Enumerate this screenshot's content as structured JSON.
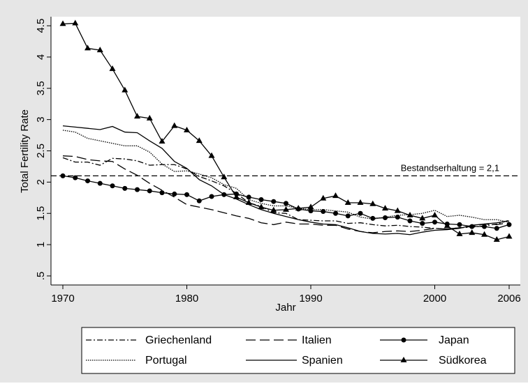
{
  "chart_data": {
    "type": "line",
    "ylabel": "Total Fertility Rate",
    "xlabel": "Jahr",
    "x": [
      1970,
      1971,
      1972,
      1973,
      1974,
      1975,
      1976,
      1977,
      1978,
      1979,
      1980,
      1981,
      1982,
      1983,
      1984,
      1985,
      1986,
      1987,
      1988,
      1989,
      1990,
      1991,
      1992,
      1993,
      1994,
      1995,
      1996,
      1997,
      1998,
      1999,
      2000,
      2001,
      2002,
      2003,
      2004,
      2005,
      2006
    ],
    "xlim": [
      1970,
      2006
    ],
    "xticks": [
      1970,
      1980,
      1990,
      2000,
      2006
    ],
    "ylim": [
      0.5,
      4.5
    ],
    "yticks": [
      {
        "value": 0.5,
        "label": ".5"
      },
      1,
      1.5,
      2,
      2.5,
      3,
      3.5,
      4,
      4.5
    ],
    "hline": {
      "value": 2.1,
      "label": "Bestandserhaltung = 2,1",
      "dash": "8,4"
    },
    "series": [
      {
        "name": "Griechenland",
        "color": "#000000",
        "dash": "8,3,2,3",
        "marker": "none",
        "values": [
          2.39,
          2.32,
          2.32,
          2.27,
          2.38,
          2.37,
          2.34,
          2.27,
          2.28,
          2.28,
          2.21,
          2.09,
          2.02,
          1.94,
          1.82,
          1.67,
          1.61,
          1.51,
          1.5,
          1.4,
          1.39,
          1.38,
          1.38,
          1.34,
          1.35,
          1.32,
          1.3,
          1.31,
          1.29,
          1.28,
          1.26,
          1.25,
          1.27,
          1.28,
          1.3,
          1.33,
          1.39
        ]
      },
      {
        "name": "Italien",
        "color": "#000000",
        "dash": "14,6",
        "marker": "none",
        "values": [
          2.42,
          2.41,
          2.36,
          2.34,
          2.33,
          2.21,
          2.11,
          1.98,
          1.87,
          1.76,
          1.64,
          1.6,
          1.56,
          1.51,
          1.46,
          1.42,
          1.35,
          1.32,
          1.36,
          1.33,
          1.33,
          1.31,
          1.31,
          1.25,
          1.21,
          1.19,
          1.21,
          1.22,
          1.21,
          1.23,
          1.26,
          1.25,
          1.27,
          1.29,
          1.33,
          1.32,
          1.35
        ]
      },
      {
        "name": "Japan",
        "color": "#000000",
        "dash": "none",
        "marker": "circle",
        "values": [
          2.1,
          2.07,
          2.02,
          1.98,
          1.94,
          1.9,
          1.88,
          1.86,
          1.83,
          1.81,
          1.8,
          1.7,
          1.77,
          1.8,
          1.81,
          1.76,
          1.72,
          1.69,
          1.66,
          1.57,
          1.54,
          1.53,
          1.5,
          1.46,
          1.5,
          1.42,
          1.43,
          1.44,
          1.38,
          1.34,
          1.36,
          1.33,
          1.32,
          1.29,
          1.29,
          1.26,
          1.32
        ]
      },
      {
        "name": "Portugal",
        "color": "#000000",
        "dash": "1.5,1.5",
        "marker": "none",
        "values": [
          2.83,
          2.8,
          2.7,
          2.66,
          2.62,
          2.58,
          2.58,
          2.48,
          2.29,
          2.17,
          2.18,
          2.13,
          2.07,
          1.96,
          1.9,
          1.72,
          1.66,
          1.62,
          1.62,
          1.58,
          1.56,
          1.56,
          1.54,
          1.52,
          1.44,
          1.41,
          1.44,
          1.47,
          1.48,
          1.5,
          1.55,
          1.45,
          1.47,
          1.44,
          1.4,
          1.4,
          1.36
        ]
      },
      {
        "name": "Spanien",
        "color": "#000000",
        "dash": "none",
        "marker": "none",
        "values": [
          2.9,
          2.88,
          2.86,
          2.84,
          2.89,
          2.8,
          2.79,
          2.66,
          2.54,
          2.33,
          2.22,
          2.04,
          1.94,
          1.8,
          1.73,
          1.64,
          1.56,
          1.5,
          1.45,
          1.4,
          1.36,
          1.33,
          1.32,
          1.27,
          1.21,
          1.18,
          1.17,
          1.18,
          1.16,
          1.2,
          1.23,
          1.24,
          1.26,
          1.31,
          1.33,
          1.35,
          1.38
        ]
      },
      {
        "name": "Südkorea",
        "color": "#000000",
        "dash": "none",
        "marker": "triangle",
        "values": [
          4.53,
          4.54,
          4.14,
          4.11,
          3.81,
          3.47,
          3.05,
          3.02,
          2.65,
          2.9,
          2.83,
          2.66,
          2.42,
          2.08,
          1.76,
          1.67,
          1.6,
          1.55,
          1.56,
          1.58,
          1.6,
          1.74,
          1.78,
          1.67,
          1.67,
          1.65,
          1.58,
          1.54,
          1.47,
          1.42,
          1.47,
          1.3,
          1.17,
          1.19,
          1.16,
          1.08,
          1.13
        ]
      }
    ]
  }
}
